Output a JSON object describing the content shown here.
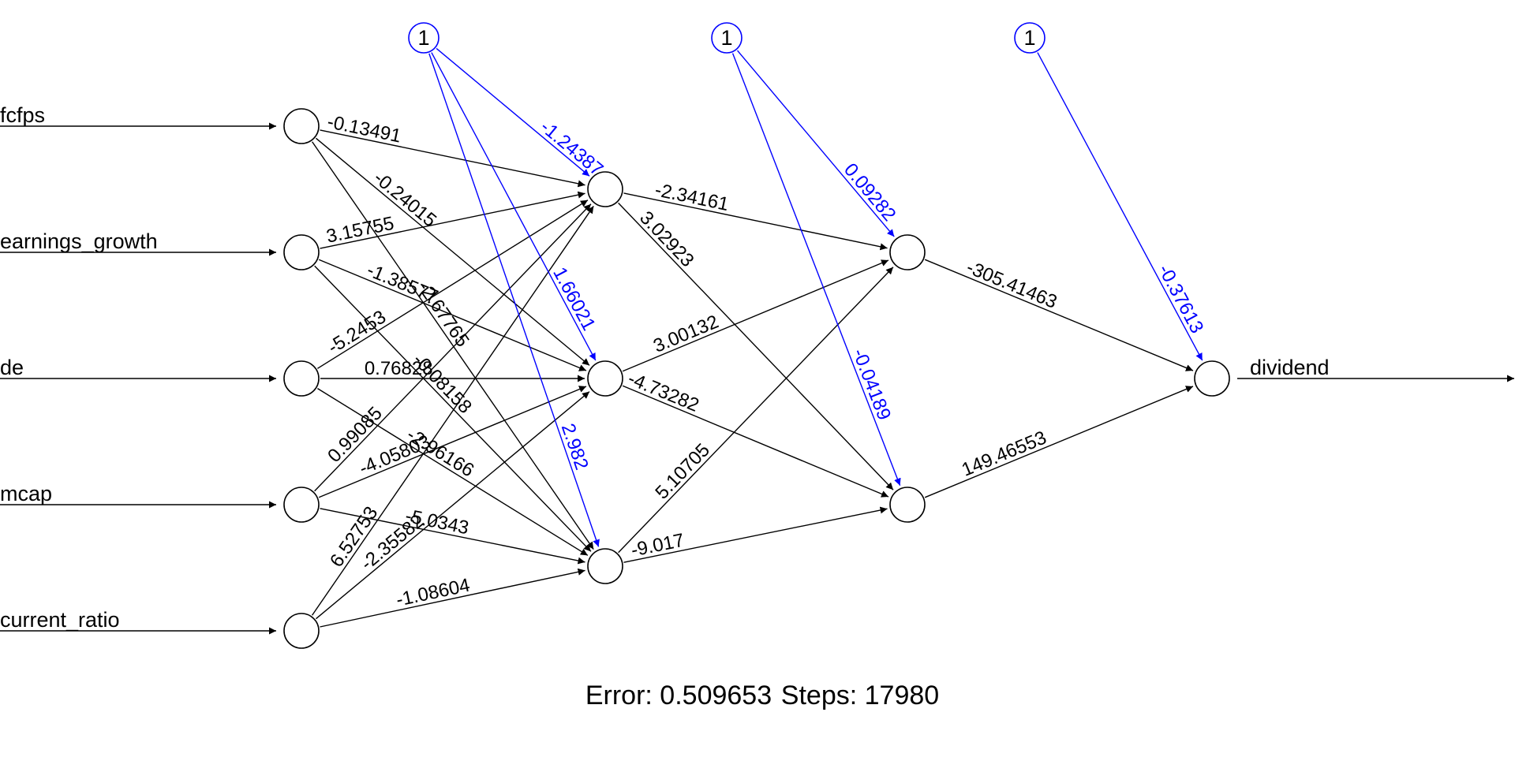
{
  "inputs": [
    "fcfps",
    "earnings_growth",
    "de",
    "mcap",
    "current_ratio"
  ],
  "output": "dividend",
  "bias_label": "1",
  "weights": {
    "input_to_h1": [
      [
        "-0.13491",
        "-0.24015",
        "-2.67765"
      ],
      [
        "3.15755",
        "-1.38577",
        "-0.08158"
      ],
      [
        "-5.2453",
        "0.76828",
        "-2.96166"
      ],
      [
        "0.99085",
        "-4.05803",
        "-5.0343"
      ],
      [
        "6.52753",
        "-2.35582",
        "-1.08604"
      ]
    ],
    "bias_h1": [
      "-1.24387",
      "1.66021",
      "2.982"
    ],
    "h1_to_h2": [
      [
        "-2.34161",
        "3.02923"
      ],
      [
        "3.00132",
        "-4.73282"
      ],
      [
        "5.10705",
        "-9.017"
      ]
    ],
    "bias_h2": [
      "0.09282",
      "-0.04189"
    ],
    "h2_to_out": [
      "-305.41463",
      "149.46553"
    ],
    "bias_out": [
      "-0.37613"
    ]
  },
  "footer": {
    "error_label": "Error: 0.509653",
    "steps_label": "Steps: 17980"
  },
  "colors": {
    "edge": "#000000",
    "bias_edge": "#0000ff",
    "node_stroke": "#000000",
    "bias_node_stroke": "#0000ff"
  }
}
